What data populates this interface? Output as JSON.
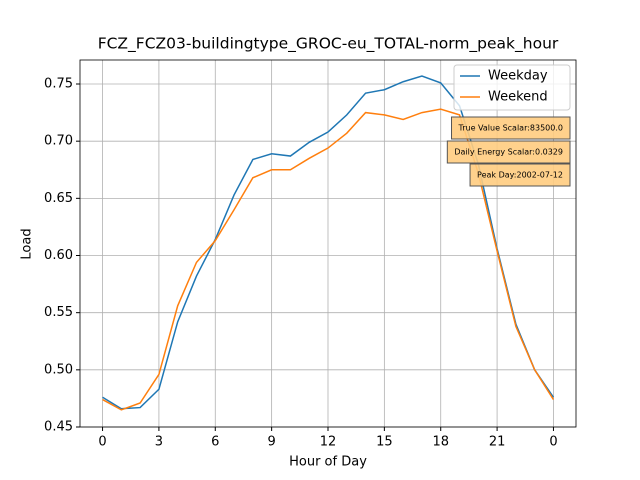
{
  "chart_data": {
    "type": "line",
    "title": "FCZ_FCZ03-buildingtype_GROC-eu_TOTAL-norm_peak_hour",
    "x_label": "Hour of Day",
    "y_label": "Load",
    "x": [
      0,
      1,
      2,
      3,
      4,
      5,
      6,
      7,
      8,
      9,
      10,
      11,
      12,
      13,
      14,
      15,
      16,
      17,
      18,
      19,
      20,
      21,
      22,
      23,
      24
    ],
    "series": [
      {
        "name": "Weekday",
        "color": "#1f77b4",
        "values": [
          0.476,
          0.466,
          0.467,
          0.483,
          0.542,
          0.582,
          0.614,
          0.653,
          0.684,
          0.689,
          0.687,
          0.699,
          0.708,
          0.723,
          0.742,
          0.745,
          0.752,
          0.757,
          0.751,
          0.731,
          0.68,
          0.606,
          0.54,
          0.5,
          0.476
        ]
      },
      {
        "name": "Weekend",
        "color": "#ff7f0e",
        "values": [
          0.474,
          0.465,
          0.471,
          0.496,
          0.556,
          0.594,
          0.613,
          0.64,
          0.668,
          0.675,
          0.675,
          0.685,
          0.694,
          0.707,
          0.725,
          0.723,
          0.719,
          0.725,
          0.728,
          0.723,
          0.672,
          0.604,
          0.538,
          0.5,
          0.474
        ]
      }
    ],
    "xlim": [
      -1.2,
      25.2
    ],
    "xticks": [
      0,
      3,
      6,
      9,
      12,
      15,
      18,
      21,
      {
        "value": 24,
        "label": "0"
      }
    ],
    "ylim": [
      0.45,
      0.771
    ],
    "yticks": [
      0.45,
      {
        "value": 0.5,
        "label": "0.50"
      },
      0.55,
      {
        "value": 0.6,
        "label": "0.60"
      },
      0.65,
      {
        "value": 0.7,
        "label": "0.70"
      },
      0.75
    ],
    "grid": true,
    "legend": "upper right",
    "annotations": [
      "True Value Scalar:83500.0",
      "Daily Energy Scalar:0.0329",
      "Peak Day:2002-07-12"
    ],
    "annotation_color": "#ffcc80"
  }
}
